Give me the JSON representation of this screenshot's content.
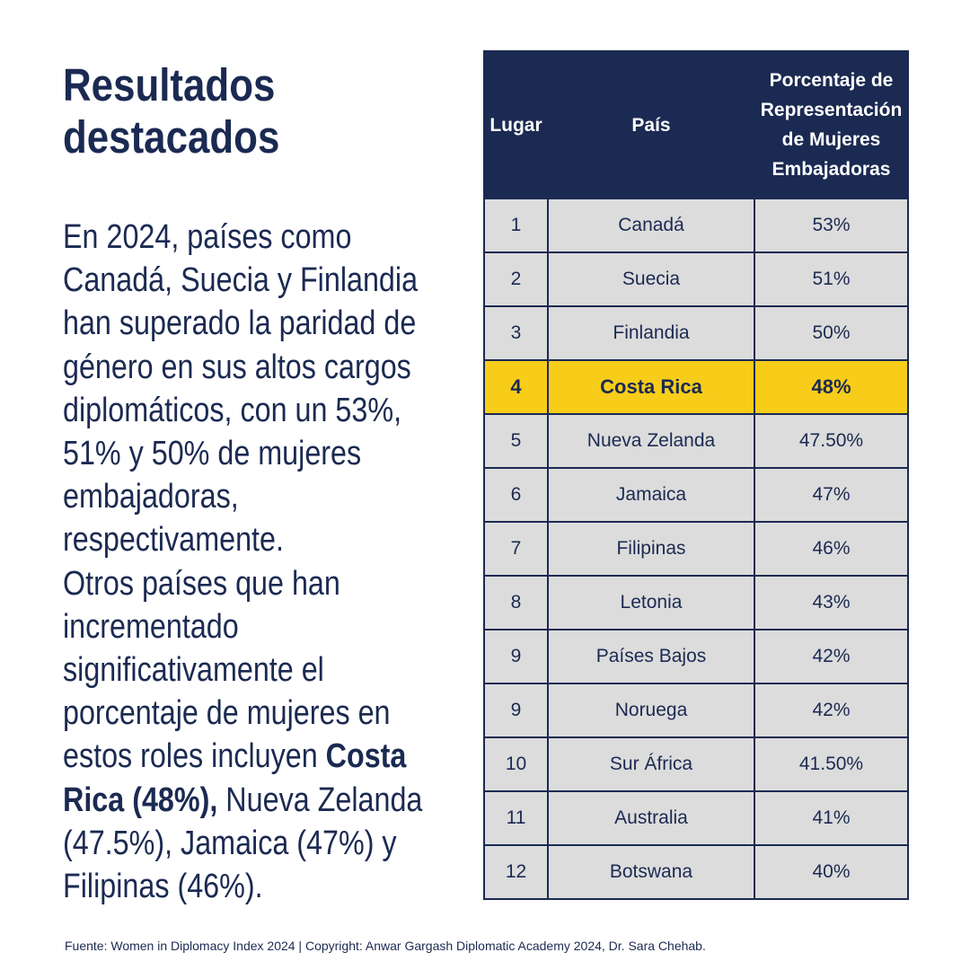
{
  "title": "Resultados destacados",
  "body": {
    "paragraph1": "En 2024, países como Canadá, Suecia y Finlandia han superado la paridad de género en sus altos cargos diplomáticos, con un 53%, 51% y 50% de mujeres embajadoras, respectivamente.",
    "paragraph2_intro": "Otros países que han incrementado significativamente el porcentaje de mujeres en estos roles incluyen ",
    "paragraph2_highlight": "Costa Rica (48%),",
    "paragraph2_rest": " Nueva Zelanda (47.5%), Jamaica (47%) y Filipinas (46%)."
  },
  "table": {
    "headers": {
      "rank": "Lugar",
      "country": "País",
      "percentage": "Porcentaje de Representación de Mujeres Embajadoras"
    },
    "rows": [
      {
        "rank": "1",
        "country": "Canadá",
        "percentage": "53%"
      },
      {
        "rank": "2",
        "country": "Suecia",
        "percentage": "51%"
      },
      {
        "rank": "3",
        "country": "Finlandia",
        "percentage": "50%"
      },
      {
        "rank": "4",
        "country": "Costa Rica",
        "percentage": "48%"
      },
      {
        "rank": "5",
        "country": "Nueva Zelanda",
        "percentage": "47.50%"
      },
      {
        "rank": "6",
        "country": "Jamaica",
        "percentage": "47%"
      },
      {
        "rank": "7",
        "country": "Filipinas",
        "percentage": "46%"
      },
      {
        "rank": "8",
        "country": "Letonia",
        "percentage": "43%"
      },
      {
        "rank": "9",
        "country": "Países Bajos",
        "percentage": "42%"
      },
      {
        "rank": "9",
        "country": "Noruega",
        "percentage": "42%"
      },
      {
        "rank": "10",
        "country": "Sur África",
        "percentage": "41.50%"
      },
      {
        "rank": "11",
        "country": "Australia",
        "percentage": "41%"
      },
      {
        "rank": "12",
        "country": "Botswana",
        "percentage": "40%"
      }
    ],
    "highlighted_row": 3,
    "colors": {
      "header_background": "#1b2a52",
      "row_background": "#dcdcdc",
      "highlight_background": "#f8cd1a"
    }
  },
  "footer": "Fuente: Women in Diplomacy Index 2024 | Copyright: Anwar Gargash Diplomatic Academy 2024, Dr. Sara Chehab."
}
